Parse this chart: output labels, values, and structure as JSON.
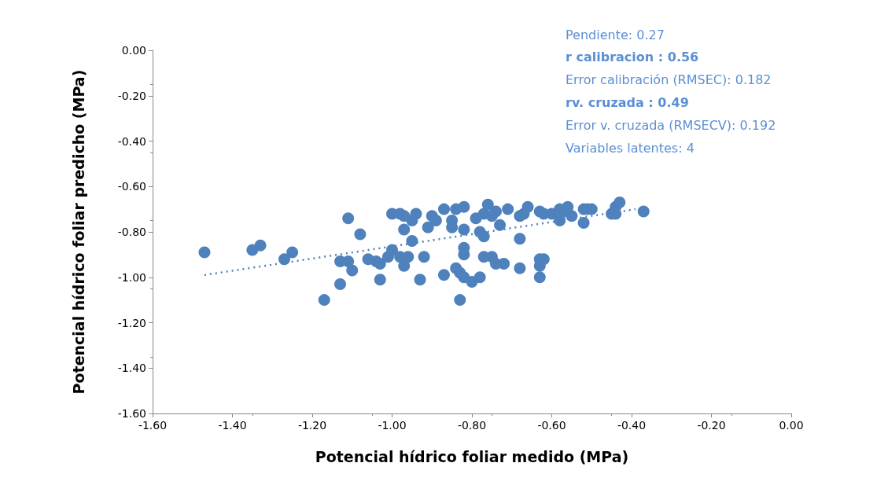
{
  "chart_data": {
    "type": "scatter",
    "xlabel": "Potencial hídrico foliar medido (MPa)",
    "ylabel": "Potencial hídrico foliar predicho (MPa)",
    "xlim": [
      -1.6,
      0
    ],
    "ylim": [
      -1.6,
      0
    ],
    "xticks": [
      {
        "value": -1.6,
        "label": "-1.60"
      },
      {
        "value": -1.4,
        "label": "-1.40"
      },
      {
        "value": -1.2,
        "label": "-1.20"
      },
      {
        "value": -1.0,
        "label": "-1.00"
      },
      {
        "value": -0.8,
        "label": "-0.80"
      },
      {
        "value": -0.6,
        "label": "-0.60"
      },
      {
        "value": -0.4,
        "label": "-0.40"
      },
      {
        "value": -0.2,
        "label": "-0.20"
      },
      {
        "value": 0,
        "label": "0.00"
      }
    ],
    "yticks": [
      {
        "value": -1.6,
        "label": "-1.60"
      },
      {
        "value": -1.4,
        "label": "-1.40"
      },
      {
        "value": -1.2,
        "label": "-1.20"
      },
      {
        "value": -1.0,
        "label": "-1.00"
      },
      {
        "value": -0.8,
        "label": "-0.80"
      },
      {
        "value": -0.6,
        "label": "-0.60"
      },
      {
        "value": -0.4,
        "label": "-0.40"
      },
      {
        "value": -0.2,
        "label": "-0.20"
      },
      {
        "value": 0,
        "label": "0.00"
      }
    ],
    "grid": false,
    "marker": "circle",
    "annotations": [
      "Pendiente: 0.27",
      "r calibracion : 0.56",
      "Error calibración (RMSEC): 0.182",
      "rv. cruzada : 0.49",
      "Error v. cruzada (RMSECV): 0.192",
      "Variables latentes: 4"
    ],
    "series": [
      {
        "color": "#4f81bd",
        "x": [
          -1.47,
          -1.35,
          -1.33,
          -1.27,
          -1.25,
          -1.13,
          -1.13,
          -1.11,
          -1.11,
          -1.1,
          -1.08,
          -1.17,
          -1.06,
          -1.04,
          -1.03,
          -1.03,
          -1.01,
          -1.0,
          -1.0,
          -0.98,
          -0.98,
          -0.97,
          -0.97,
          -0.97,
          -0.96,
          -0.95,
          -0.95,
          -0.94,
          -0.93,
          -0.92,
          -0.91,
          -0.9,
          -0.89,
          -0.87,
          -0.87,
          -0.85,
          -0.85,
          -0.84,
          -0.84,
          -0.83,
          -0.83,
          -0.82,
          -0.82,
          -0.82,
          -0.82,
          -0.82,
          -0.8,
          -0.79,
          -0.78,
          -0.78,
          -0.77,
          -0.77,
          -0.77,
          -0.76,
          -0.75,
          -0.75,
          -0.74,
          -0.74,
          -0.73,
          -0.72,
          -0.71,
          -0.68,
          -0.68,
          -0.68,
          -0.67,
          -0.66,
          -0.63,
          -0.63,
          -0.63,
          -0.63,
          -0.62,
          -0.62,
          -0.6,
          -0.58,
          -0.58,
          -0.57,
          -0.56,
          -0.55,
          -0.52,
          -0.52,
          -0.51,
          -0.5,
          -0.45,
          -0.44,
          -0.43,
          -0.37,
          -0.44
        ],
        "values": [
          -0.89,
          -0.88,
          -0.86,
          -0.92,
          -0.89,
          -0.93,
          -1.03,
          -0.93,
          -0.74,
          -0.97,
          -0.81,
          -1.1,
          -0.92,
          -0.93,
          -0.94,
          -1.01,
          -0.91,
          -0.88,
          -0.72,
          -0.72,
          -0.91,
          -0.95,
          -0.73,
          -0.79,
          -0.91,
          -0.75,
          -0.84,
          -0.72,
          -1.01,
          -0.91,
          -0.78,
          -0.73,
          -0.75,
          -0.7,
          -0.99,
          -0.75,
          -0.78,
          -0.7,
          -0.96,
          -0.98,
          -1.1,
          -0.69,
          -0.79,
          -0.87,
          -0.9,
          -1.0,
          -1.02,
          -0.74,
          -0.8,
          -1.0,
          -0.72,
          -0.91,
          -0.82,
          -0.68,
          -0.73,
          -0.91,
          -0.71,
          -0.94,
          -0.77,
          -0.94,
          -0.7,
          -0.83,
          -0.96,
          -0.73,
          -0.72,
          -0.69,
          -0.71,
          -0.92,
          -0.95,
          -1.0,
          -0.72,
          -0.92,
          -0.72,
          -0.7,
          -0.75,
          -0.71,
          -0.69,
          -0.73,
          -0.7,
          -0.76,
          -0.7,
          -0.7,
          -0.72,
          -0.69,
          -0.67,
          -0.71,
          -0.72
        ]
      },
      {
        "type": "line",
        "color": "#4f81bd",
        "line_style": "dotted",
        "marker": "none",
        "x": [
          -1.47,
          -0.39
        ],
        "values": [
          -0.99,
          -0.7
        ]
      }
    ]
  }
}
